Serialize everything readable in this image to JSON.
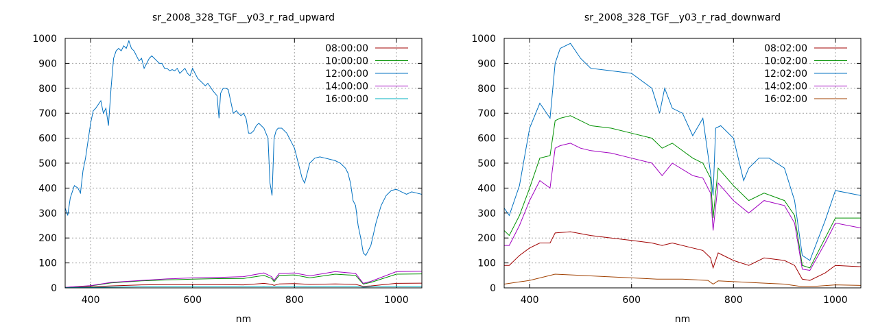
{
  "chart_data": [
    {
      "type": "line",
      "title": "sr_2008_328_TGF__y03_r_rad_upward",
      "xlabel": "nm",
      "ylabel": "",
      "xlim": [
        350,
        1050
      ],
      "ylim": [
        0,
        1000
      ],
      "xticks": [
        400,
        600,
        800,
        1000
      ],
      "yticks": [
        0,
        100,
        200,
        300,
        400,
        500,
        600,
        700,
        800,
        900,
        1000
      ],
      "grid": true,
      "legend": "top-right",
      "series": [
        {
          "name": "08:00:00",
          "color": "#a00000",
          "x": [
            350,
            400,
            440,
            500,
            550,
            600,
            650,
            700,
            740,
            755,
            760,
            770,
            800,
            830,
            880,
            920,
            935,
            950,
            1000,
            1050
          ],
          "y": [
            1,
            4,
            8,
            12,
            13,
            13,
            13,
            12,
            18,
            14,
            10,
            16,
            17,
            14,
            16,
            14,
            6,
            8,
            18,
            19
          ]
        },
        {
          "name": "10:00:00",
          "color": "#009000",
          "x": [
            350,
            400,
            440,
            500,
            550,
            600,
            650,
            700,
            740,
            755,
            760,
            770,
            800,
            830,
            880,
            920,
            935,
            950,
            1000,
            1050
          ],
          "y": [
            2,
            8,
            20,
            28,
            32,
            35,
            37,
            38,
            50,
            38,
            25,
            50,
            52,
            40,
            55,
            50,
            15,
            22,
            55,
            56
          ]
        },
        {
          "name": "12:00:00",
          "color": "#0070c0",
          "x": [
            350,
            355,
            360,
            368,
            375,
            380,
            385,
            390,
            395,
            400,
            405,
            410,
            420,
            425,
            430,
            435,
            440,
            445,
            450,
            455,
            460,
            465,
            470,
            475,
            480,
            485,
            490,
            495,
            500,
            505,
            510,
            515,
            520,
            525,
            530,
            535,
            540,
            545,
            550,
            555,
            560,
            565,
            570,
            575,
            580,
            585,
            590,
            595,
            600,
            605,
            610,
            615,
            620,
            625,
            630,
            640,
            648,
            652,
            655,
            660,
            665,
            670,
            680,
            686,
            690,
            695,
            700,
            705,
            710,
            715,
            720,
            725,
            730,
            740,
            748,
            752,
            756,
            760,
            764,
            768,
            775,
            785,
            800,
            810,
            815,
            820,
            830,
            835,
            840,
            850,
            860,
            870,
            880,
            890,
            900,
            905,
            910,
            915,
            920,
            925,
            930,
            935,
            940,
            950,
            960,
            970,
            980,
            990,
            1000,
            1010,
            1020,
            1030,
            1040,
            1050
          ],
          "y": [
            320,
            290,
            360,
            410,
            400,
            380,
            470,
            520,
            590,
            660,
            710,
            720,
            750,
            700,
            720,
            650,
            800,
            920,
            950,
            960,
            950,
            970,
            960,
            990,
            960,
            950,
            930,
            910,
            920,
            880,
            900,
            920,
            930,
            920,
            910,
            900,
            900,
            880,
            880,
            870,
            875,
            870,
            880,
            860,
            870,
            880,
            860,
            850,
            880,
            860,
            840,
            830,
            820,
            810,
            820,
            790,
            770,
            680,
            780,
            800,
            800,
            795,
            700,
            710,
            700,
            690,
            700,
            680,
            620,
            620,
            630,
            650,
            660,
            640,
            600,
            420,
            370,
            600,
            630,
            640,
            640,
            620,
            560,
            480,
            440,
            420,
            500,
            510,
            520,
            525,
            520,
            515,
            510,
            500,
            480,
            460,
            420,
            350,
            330,
            250,
            200,
            140,
            130,
            170,
            260,
            330,
            370,
            390,
            395,
            385,
            375,
            385,
            380,
            375
          ]
        },
        {
          "name": "14:00:00",
          "color": "#a000c0",
          "x": [
            350,
            400,
            440,
            500,
            550,
            600,
            650,
            700,
            740,
            755,
            760,
            770,
            800,
            830,
            880,
            920,
            935,
            950,
            1000,
            1050
          ],
          "y": [
            2,
            9,
            22,
            30,
            36,
            40,
            42,
            45,
            60,
            45,
            30,
            58,
            60,
            48,
            65,
            58,
            18,
            26,
            65,
            67
          ]
        },
        {
          "name": "16:00:00",
          "color": "#00b0c0",
          "x": [
            350,
            400,
            440,
            500,
            550,
            600,
            650,
            700,
            740,
            755,
            760,
            770,
            800,
            830,
            880,
            920,
            935,
            950,
            1000,
            1050
          ],
          "y": [
            1,
            2,
            3,
            4,
            5,
            5,
            5,
            5,
            6,
            5,
            4,
            6,
            6,
            5,
            6,
            6,
            3,
            4,
            6,
            6
          ]
        }
      ]
    },
    {
      "type": "line",
      "title": "sr_2008_328_TGF__y03_r_rad_downward",
      "xlabel": "nm",
      "ylabel": "",
      "xlim": [
        350,
        1050
      ],
      "ylim": [
        0,
        1000
      ],
      "xticks": [
        400,
        600,
        800,
        1000
      ],
      "yticks": [
        0,
        100,
        200,
        300,
        400,
        500,
        600,
        700,
        800,
        900,
        1000
      ],
      "grid": true,
      "legend": "top-right",
      "series": [
        {
          "name": "08:02:00",
          "color": "#a00000",
          "x": [
            350,
            360,
            380,
            400,
            420,
            440,
            450,
            480,
            520,
            560,
            600,
            640,
            660,
            680,
            720,
            740,
            755,
            760,
            770,
            800,
            830,
            860,
            900,
            920,
            935,
            950,
            980,
            1000,
            1050
          ],
          "y": [
            90,
            90,
            130,
            160,
            180,
            180,
            220,
            225,
            210,
            200,
            190,
            180,
            170,
            180,
            160,
            150,
            120,
            80,
            140,
            110,
            90,
            120,
            110,
            90,
            35,
            30,
            60,
            90,
            85
          ]
        },
        {
          "name": "10:02:00",
          "color": "#009000",
          "x": [
            350,
            360,
            380,
            400,
            420,
            440,
            450,
            460,
            480,
            500,
            520,
            560,
            600,
            640,
            660,
            680,
            720,
            740,
            755,
            760,
            770,
            800,
            830,
            860,
            900,
            920,
            935,
            950,
            980,
            1000,
            1050
          ],
          "y": [
            230,
            210,
            290,
            400,
            520,
            530,
            670,
            680,
            690,
            670,
            650,
            640,
            620,
            600,
            560,
            580,
            520,
            500,
            440,
            280,
            480,
            410,
            350,
            380,
            350,
            290,
            90,
            80,
            200,
            280,
            280
          ]
        },
        {
          "name": "12:02:00",
          "color": "#0070c0",
          "x": [
            350,
            360,
            380,
            400,
            420,
            440,
            450,
            460,
            480,
            500,
            520,
            560,
            600,
            640,
            655,
            665,
            680,
            700,
            720,
            740,
            755,
            760,
            765,
            775,
            800,
            820,
            830,
            850,
            870,
            900,
            920,
            935,
            950,
            980,
            1000,
            1050
          ],
          "y": [
            320,
            290,
            410,
            640,
            740,
            680,
            900,
            960,
            980,
            920,
            880,
            870,
            860,
            800,
            700,
            800,
            720,
            700,
            610,
            680,
            460,
            370,
            640,
            650,
            600,
            430,
            480,
            520,
            520,
            480,
            350,
            130,
            110,
            270,
            390,
            370
          ]
        },
        {
          "name": "14:02:00",
          "color": "#a000c0",
          "x": [
            350,
            360,
            380,
            400,
            420,
            440,
            450,
            460,
            480,
            500,
            520,
            560,
            600,
            640,
            660,
            680,
            720,
            740,
            755,
            760,
            770,
            800,
            830,
            860,
            900,
            920,
            935,
            950,
            980,
            1000,
            1050
          ],
          "y": [
            170,
            170,
            250,
            350,
            430,
            400,
            560,
            570,
            580,
            560,
            550,
            540,
            520,
            500,
            450,
            500,
            450,
            440,
            380,
            230,
            420,
            350,
            300,
            350,
            330,
            260,
            75,
            70,
            180,
            260,
            240
          ]
        },
        {
          "name": "16:02:00",
          "color": "#a04000",
          "x": [
            350,
            400,
            450,
            500,
            550,
            600,
            650,
            700,
            750,
            760,
            770,
            800,
            850,
            900,
            935,
            950,
            1000,
            1050
          ],
          "y": [
            15,
            30,
            55,
            50,
            45,
            40,
            35,
            35,
            30,
            15,
            28,
            25,
            20,
            15,
            5,
            5,
            12,
            10
          ]
        }
      ]
    }
  ]
}
